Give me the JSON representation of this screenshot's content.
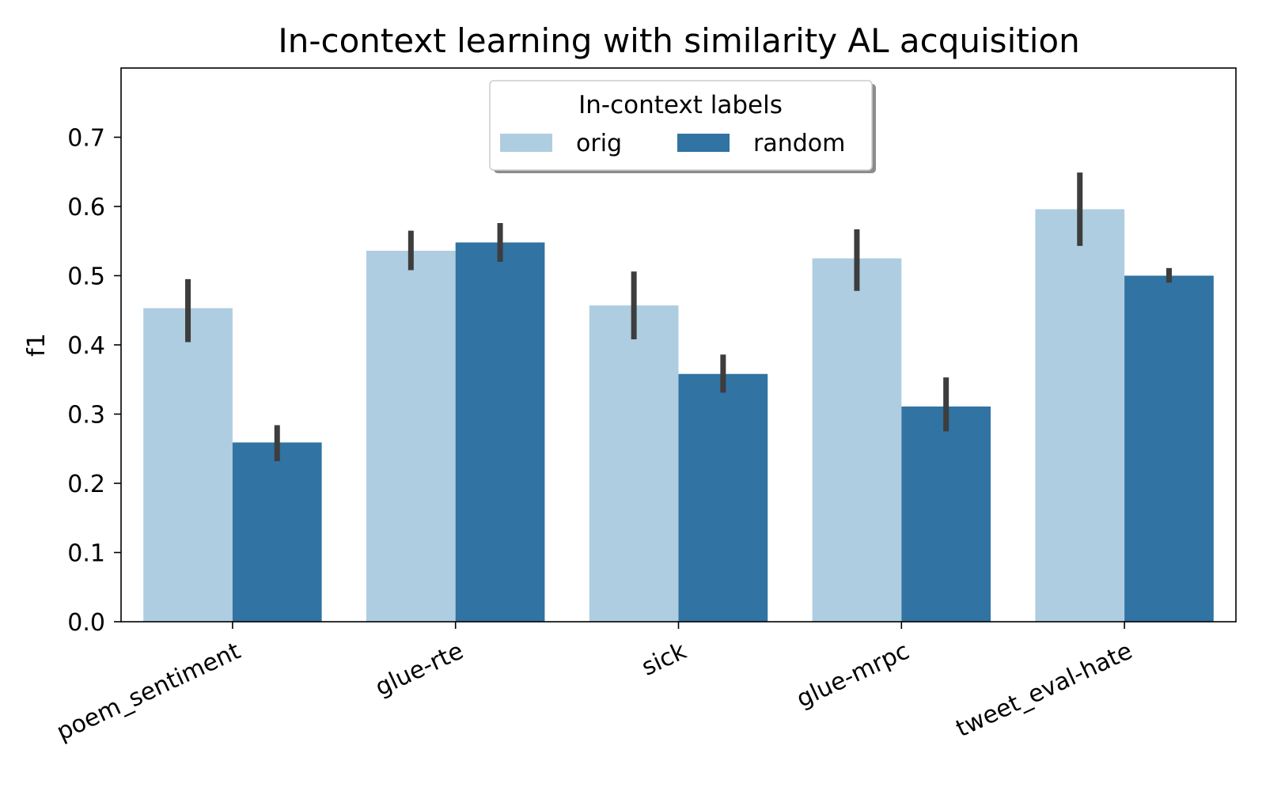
{
  "chart_data": {
    "type": "bar",
    "title": "In-context learning with similarity AL acquisition",
    "xlabel": "",
    "ylabel": "f1",
    "ylim": [
      0,
      0.8
    ],
    "yticks": [
      "0.0",
      "0.1",
      "0.2",
      "0.3",
      "0.4",
      "0.5",
      "0.6",
      "0.7"
    ],
    "ytick_values": [
      0.0,
      0.1,
      0.2,
      0.3,
      0.4,
      0.5,
      0.6,
      0.7
    ],
    "categories": [
      "poem_sentiment",
      "glue-rte",
      "sick",
      "glue-mrpc",
      "tweet_eval-hate"
    ],
    "legend": {
      "title": "In-context labels",
      "placement": "upper center",
      "ncol": 2
    },
    "series": [
      {
        "name": "orig",
        "color": "#afcde0",
        "values": [
          0.453,
          0.536,
          0.457,
          0.525,
          0.596
        ],
        "err_low": [
          0.404,
          0.508,
          0.408,
          0.478,
          0.543
        ],
        "err_high": [
          0.495,
          0.565,
          0.506,
          0.567,
          0.649
        ]
      },
      {
        "name": "random",
        "color": "#3173a3",
        "values": [
          0.259,
          0.548,
          0.358,
          0.311,
          0.5
        ],
        "err_low": [
          0.232,
          0.52,
          0.331,
          0.275,
          0.49
        ],
        "err_high": [
          0.284,
          0.576,
          0.386,
          0.353,
          0.511
        ]
      }
    ],
    "errorbar_color": "#3d3d3d",
    "grid": false
  }
}
